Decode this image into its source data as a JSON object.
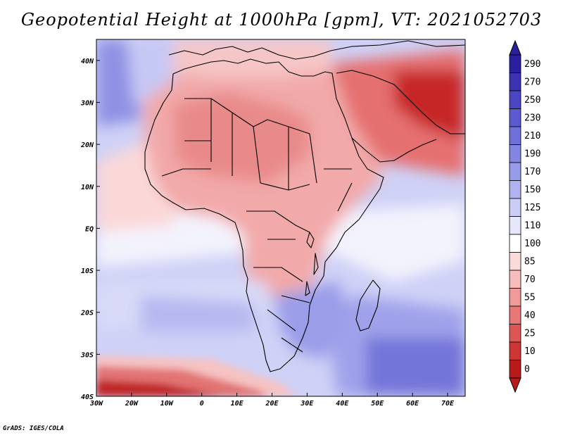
{
  "title": "Geopotential Height at 1000hPa [gpm], VT: 2021052703",
  "credit": "GrADS: IGES/COLA",
  "map": {
    "x_ticks": [
      "30W",
      "20W",
      "10W",
      "0",
      "10E",
      "20E",
      "30E",
      "40E",
      "50E",
      "60E",
      "70E"
    ],
    "y_ticks": [
      "40N",
      "30N",
      "20N",
      "10N",
      "EQ",
      "10S",
      "20S",
      "30S",
      "40S"
    ]
  },
  "colorbar": {
    "labels": [
      "290",
      "270",
      "250",
      "230",
      "210",
      "190",
      "170",
      "150",
      "125",
      "110",
      "100",
      "85",
      "70",
      "55",
      "40",
      "25",
      "10",
      "0"
    ],
    "colors": [
      "#2a1f9e",
      "#3b33b3",
      "#4b46c4",
      "#5d5ad0",
      "#6f70da",
      "#8385e2",
      "#989be9",
      "#b0b3f0",
      "#cbcdf6",
      "#e6e7fb",
      "#ffffff",
      "#fbdada",
      "#f7bcbc",
      "#f29a9a",
      "#e87878",
      "#dd5656",
      "#cf3535",
      "#b81a1a"
    ]
  },
  "chart_data": {
    "type": "heatmap",
    "title": "Geopotential Height at 1000hPa [gpm], VT: 2021052703",
    "variable": "Geopotential Height at 1000hPa",
    "units": "gpm",
    "valid_time": "2021052703",
    "region": "Africa",
    "xlim": [
      -30,
      75
    ],
    "ylim": [
      -40,
      45
    ],
    "x_tick_values": [
      -30,
      -20,
      -10,
      0,
      10,
      20,
      30,
      40,
      50,
      60,
      70
    ],
    "y_tick_values": [
      40,
      30,
      20,
      10,
      0,
      -10,
      -20,
      -30,
      -40
    ],
    "contour_levels": [
      0,
      10,
      25,
      40,
      55,
      70,
      85,
      100,
      110,
      125,
      150,
      170,
      190,
      210,
      230,
      250,
      270,
      290
    ]
  }
}
